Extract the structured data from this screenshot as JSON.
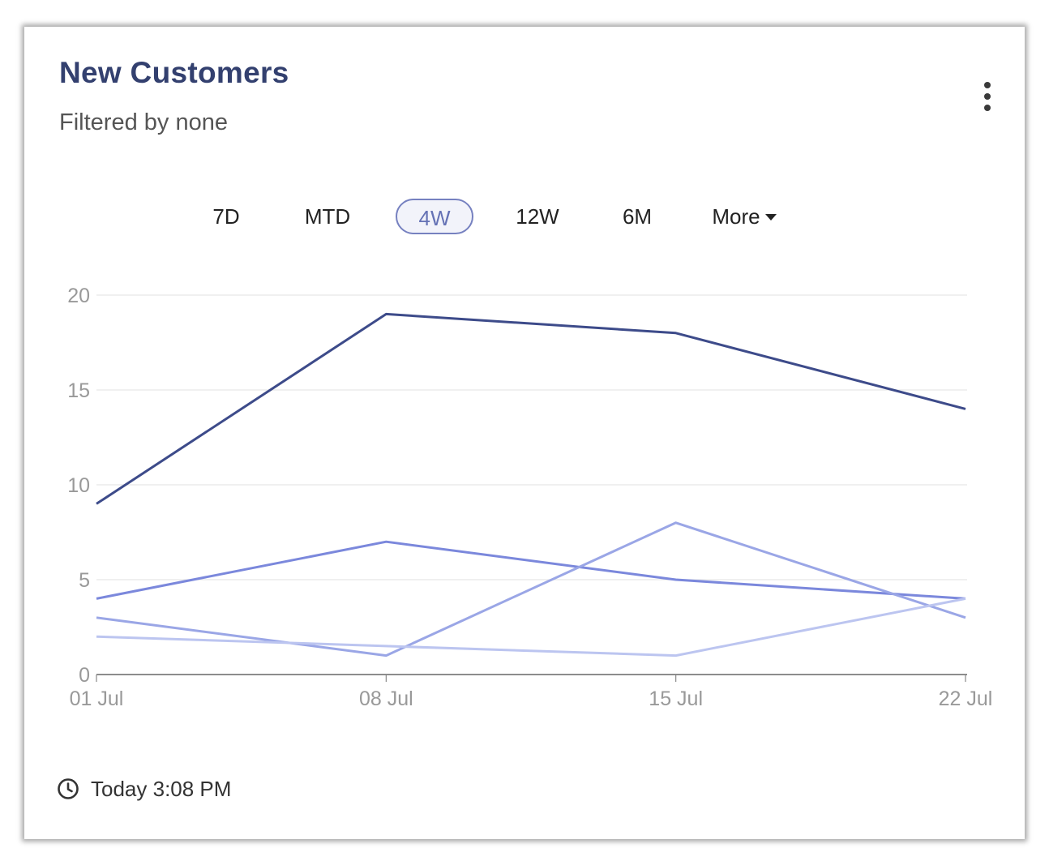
{
  "card": {
    "title": "New Customers",
    "subtitle": "Filtered by none",
    "menu_icon": "kebab-menu-icon"
  },
  "tabs": [
    {
      "label": "7D",
      "active": false
    },
    {
      "label": "MTD",
      "active": false
    },
    {
      "label": "4W",
      "active": true
    },
    {
      "label": "12W",
      "active": false
    },
    {
      "label": "6M",
      "active": false
    },
    {
      "label": "More",
      "active": false,
      "dropdown": true
    }
  ],
  "footer": {
    "icon": "clock-icon",
    "text": "Today 3:08 PM"
  },
  "chart_data": {
    "type": "line",
    "categories": [
      "01 Jul",
      "08 Jul",
      "15 Jul",
      "22 Jul"
    ],
    "yticks": [
      "0",
      "5",
      "10",
      "15",
      "20"
    ],
    "ylim": [
      0,
      20
    ],
    "grid": true,
    "series": [
      {
        "values": [
          9,
          19,
          18,
          14
        ],
        "color": "#3d4b8a"
      },
      {
        "values": [
          4,
          7,
          5,
          4
        ],
        "color": "#7b88dc"
      },
      {
        "values": [
          3,
          1,
          8,
          3
        ],
        "color": "#9aa6e6"
      },
      {
        "values": [
          2,
          1.5,
          1,
          4
        ],
        "color": "#bcc5f0"
      }
    ]
  }
}
